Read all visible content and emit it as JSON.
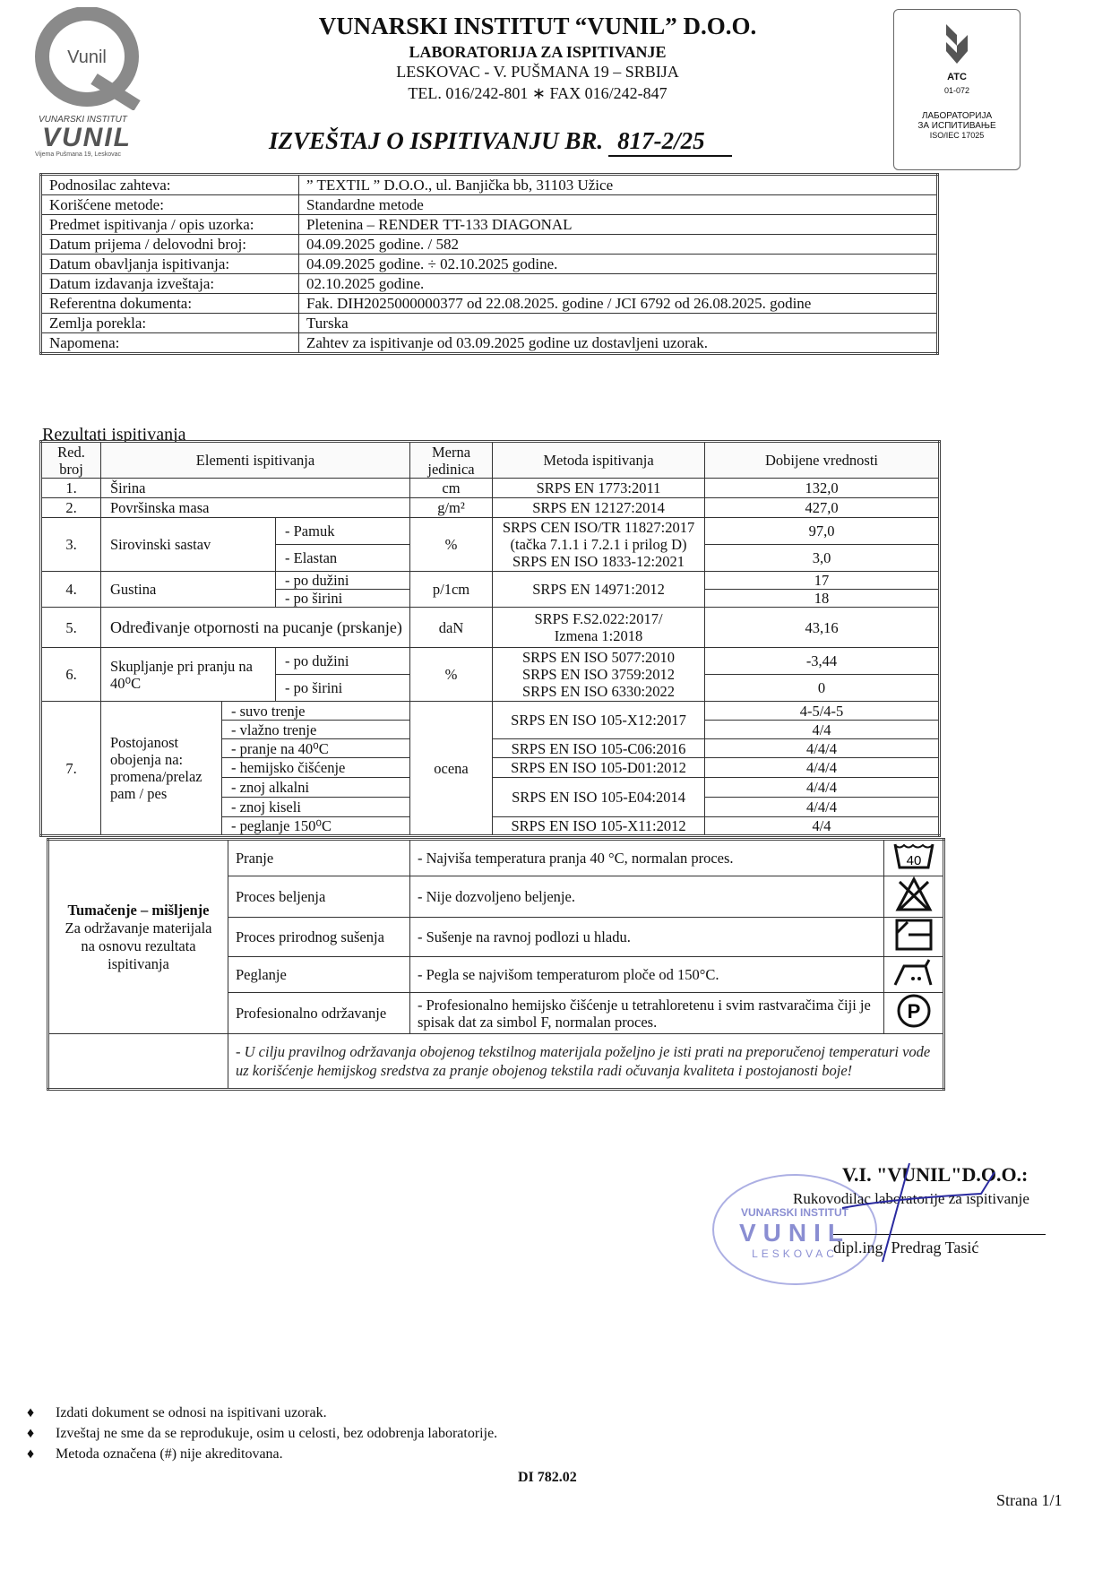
{
  "header": {
    "logo_text": "Vunil",
    "logo_caption": "VUNARSKI INSTITUT",
    "logo_wordmark": "VUNIL",
    "logo_address": "Vijema Pušmana 19, Leskovac",
    "org_name": "VUNARSKI INSTITUT “VUNIL” D.O.O.",
    "lab_name": "LABORATORIJA ZA ISPITIVANJE",
    "address": "LESKOVAC - V. PUŠMANA 19 – SRBIJA",
    "contact": "TEL. 016/242-801 ∗ FAX  016/242-847",
    "report_title": "IZVEŠTAJ O ISPITIVANJU BR.",
    "report_number": "817-2/25",
    "accreditation": {
      "mark": "ATC",
      "code": "01-072",
      "line1": "ЛАБОРАТОРИЈА",
      "line2": "ЗА ИСПИТИВАЊЕ",
      "line3": "ISO/IEC 17025"
    }
  },
  "info": [
    {
      "label": "Podnosilac zahteva:",
      "value": "” TEXTIL ” D.O.O., ul. Banjička bb, 31103 Užice"
    },
    {
      "label": "Korišćene metode:",
      "value": "Standardne metode"
    },
    {
      "label": "Predmet ispitivanja / opis uzorka:",
      "value": "Pletenina – RENDER TT-133 DIAGONAL"
    },
    {
      "label": "Datum prijema / delovodni broj:",
      "value": "04.09.2025 godine.     /    582"
    },
    {
      "label": "Datum obavljanja ispitivanja:",
      "value": "04.09.2025 godine. ÷ 02.10.2025 godine."
    },
    {
      "label": "Datum izdavanja izveštaja:",
      "value": "02.10.2025 godine."
    },
    {
      "label": "Referentna dokumenta:",
      "value": "Fak. DIH2025000000377 od 22.08.2025. godine  /  JCI 6792 od 26.08.2025. godine"
    },
    {
      "label": "Zemlja porekla:",
      "value": "Turska"
    },
    {
      "label": "Napomena:",
      "value": "Zahtev za ispitivanje od 03.09.2025 godine uz dostavljeni uzorak."
    }
  ],
  "results_heading": "Rezultati ispitivanja",
  "results": {
    "headers": {
      "no": "Red. broj",
      "element": "Elementi ispitivanja",
      "unit": "Merna jedinica",
      "method": "Metoda ispitivanja",
      "value": "Dobijene vrednosti"
    },
    "r1": {
      "no": "1.",
      "element": "Širina",
      "unit": "cm",
      "method": "SRPS EN 1773:2011",
      "value": "132,0"
    },
    "r2": {
      "no": "2.",
      "element": "Površinska masa",
      "unit": "g/m²",
      "method": "SRPS EN 12127:2014",
      "value": "427,0"
    },
    "r3": {
      "no": "3.",
      "element": "Sirovinski sastav",
      "sub1": "- Pamuk",
      "sub2": "- Elastan",
      "unit": "%",
      "method1": "SRPS CEN ISO/TR 11827:2017",
      "method2": "(tačka 7.1.1 i 7.2.1 i prilog D)",
      "method3": "SRPS EN ISO 1833-12:2021",
      "value1": "97,0",
      "value2": "3,0"
    },
    "r4": {
      "no": "4.",
      "element": "Gustina",
      "sub1": "- po dužini",
      "sub2": "- po širini",
      "unit": "p/1cm",
      "method": "SRPS EN 14971:2012",
      "value1": "17",
      "value2": "18"
    },
    "r5": {
      "no": "5.",
      "element": "Određivanje otpornosti na pucanje (prskanje)",
      "unit": "daN",
      "method1": "SRPS F.S2.022:2017/",
      "method2": "Izmena 1:2018",
      "value": "43,16"
    },
    "r6": {
      "no": "6.",
      "element": "Skupljanje pri pranju na 40⁰C",
      "sub1": "- po dužini",
      "sub2": "- po širini",
      "unit": "%",
      "method1": "SRPS EN ISO 5077:2010",
      "method2": "SRPS EN ISO 3759:2012",
      "method3": "SRPS EN ISO 6330:2022",
      "value1": "-3,44",
      "value2": "0"
    },
    "r7": {
      "no": "7.",
      "element": "Postojanost obojenja na: promena/prelaz pam / pes",
      "unit": "ocena",
      "subs": [
        "- suvo trenje",
        "- vlažno trenje",
        "- pranje na 40⁰C",
        "- hemijsko čišćenje",
        "- znoj alkalni",
        "- znoj kiseli",
        "- peglanje 150⁰C"
      ],
      "methods": [
        "SRPS EN ISO 105-X12:2017",
        "SRPS EN ISO 105-C06:2016",
        "SRPS EN ISO 105-D01:2012",
        "SRPS EN ISO 105-E04:2014",
        "SRPS EN ISO 105-X11:2012"
      ],
      "values": [
        "4-5/4-5",
        "4/4",
        "4/4/4",
        "4/4/4",
        "4/4/4",
        "4/4/4",
        "4/4"
      ]
    }
  },
  "interpretation": {
    "title": "Tumačenje – mišljenje",
    "subtitle": "Za održavanje materijala na osnovu rezultata ispitivanja",
    "rows": [
      {
        "label": "Pranje",
        "text": "-  Najviša temperatura pranja 40 °C, normalan proces.",
        "icon": "wash-40-icon",
        "icon_text": "40"
      },
      {
        "label": "Proces beljenja",
        "text": "-  Nije dozvoljeno beljenje.",
        "icon": "no-bleach-icon"
      },
      {
        "label": "Proces prirodnog sušenja",
        "text": "-  Sušenje na ravnoj podlozi u hladu.",
        "icon": "dry-flat-shade-icon"
      },
      {
        "label": "Peglanje",
        "text": "-  Pegla se najvišom temperaturom ploče od 150°C.",
        "icon": "iron-two-dots-icon"
      },
      {
        "label": "Profesionalno održavanje",
        "text": "-  Profesionalno hemijsko čišćenje u tetrahloretenu i svim rastvaračima čiji je spisak dat za simbol F, normalan proces.",
        "icon": "professional-clean-p-icon",
        "icon_text": "P"
      }
    ],
    "note": "- U cilju pravilnog održavanja obojenog tekstilnog materijala poželjno je isti prati na preporučenoj temperaturi vode uz korišćenje hemijskog sredstva za pranje obojenog tekstila radi očuvanja kvaliteta i postojanosti boje!"
  },
  "signature": {
    "company": "V.I. \"VUNIL\"D.O.O.:",
    "role": "Rukovodilac laboratorije za ispitivanje",
    "name": "dipl.ing. Predrag Tasić",
    "stamp_text": "VUNARSKI INSTITUT VUNIL LESKOVAC"
  },
  "footer": {
    "notes": [
      "Izdati dokument se odnosi na ispitivani uzorak.",
      "Izveštaj ne sme da se reprodukuje, osim u celosti, bez odobrenja laboratorije.",
      "Metoda označena (#) nije akreditovana."
    ],
    "doc_code": "DI 782.02",
    "page": "Strana 1/1"
  },
  "colors": {
    "stamp": "#5a5fc0",
    "signature": "#2a2aa0",
    "logo": "#8a8a8a"
  }
}
